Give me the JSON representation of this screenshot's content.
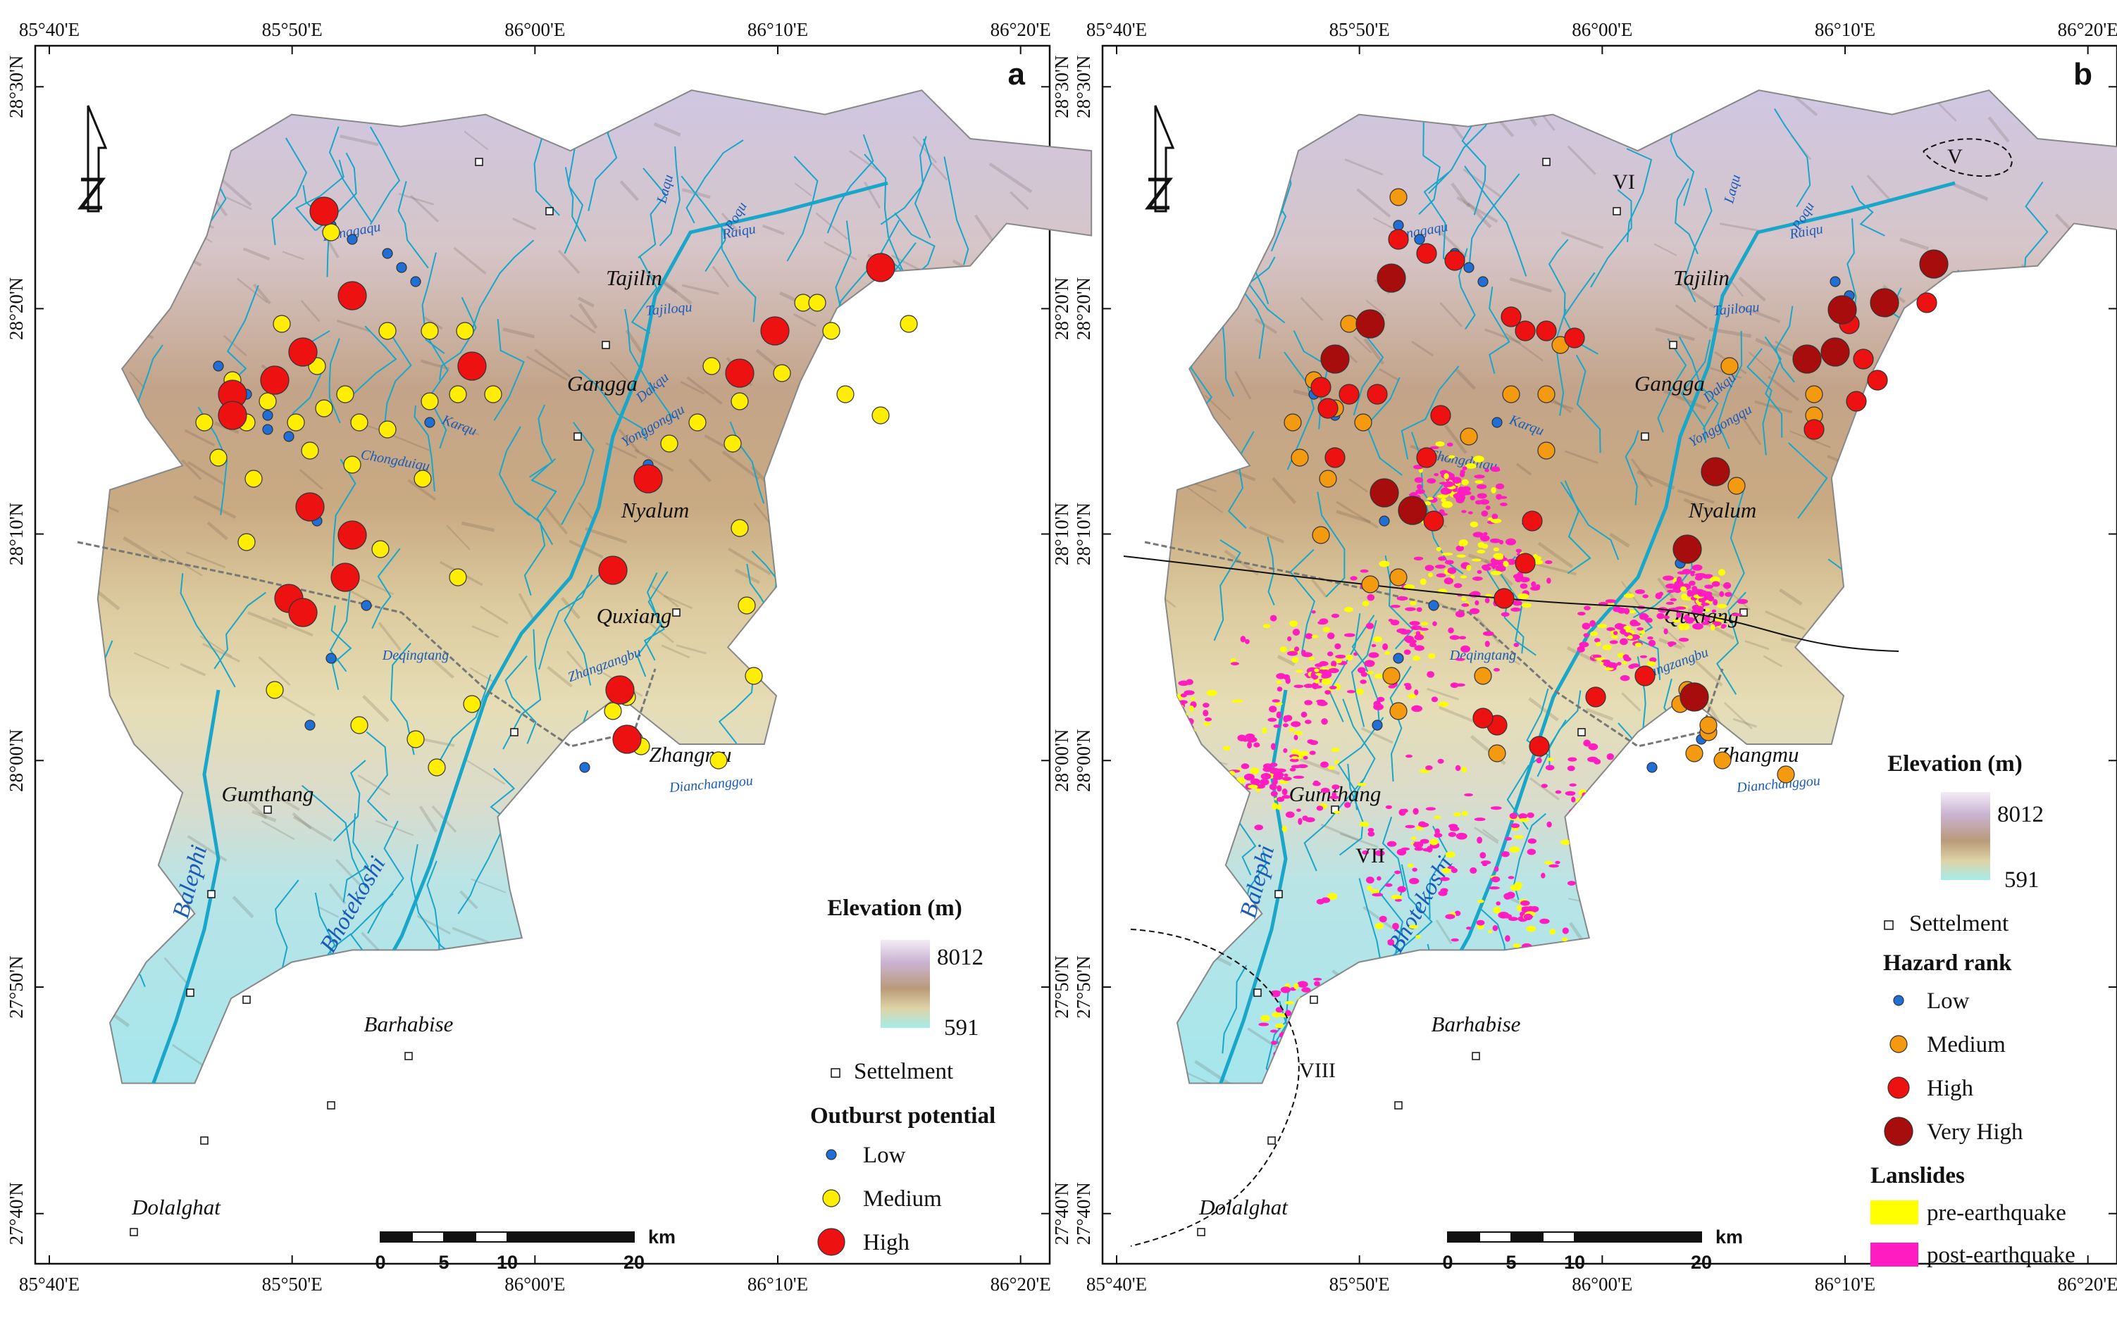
{
  "panels": [
    {
      "id": "a",
      "label": "a",
      "lon_ticks": [
        "85°40'E",
        "85°50'E",
        "86°00'E",
        "86°10'E",
        "86°20'E"
      ],
      "lat_ticks": [
        "28°30'N",
        "28°20'N",
        "28°10'N",
        "28°00'N",
        "27°50'N",
        "27°40'N"
      ],
      "places": [
        "Tajilin",
        "Gangga",
        "Nyalum",
        "Quxiang",
        "Zhangmu",
        "Gumthang",
        "Barhabise",
        "Dolalghat"
      ],
      "rivers": [
        "Poqu",
        "Laqu",
        "Karqu",
        "Raiqu",
        "Tajiloqu",
        "Dakqu",
        "Yonggongqu",
        "Kanggaqu",
        "Chongduiqu",
        "Deqingtang",
        "Zhangzangbu",
        "Dianchanggou"
      ],
      "big_rivers": [
        "Balephi",
        "Bhotekoshi"
      ],
      "legend": {
        "elevation_title": "Elevation (m)",
        "elev_max": "8012",
        "elev_min": "591",
        "settlement_label": "Settelment",
        "outburst_title": "Outburst potential",
        "items": [
          "Low",
          "Medium",
          "High"
        ]
      },
      "scale": {
        "unit": "km",
        "labels": [
          "0",
          "5",
          "10",
          "20"
        ]
      }
    },
    {
      "id": "b",
      "label": "b",
      "lon_ticks": [
        "85°40'E",
        "85°50'E",
        "86°00'E",
        "86°10'E",
        "86°20'E"
      ],
      "lat_ticks": [
        "28°30'N",
        "28°20'N",
        "28°10'N",
        "28°00'N",
        "27°50'N",
        "27°40'N"
      ],
      "places": [
        "Tajilin",
        "Gangga",
        "Nyalum",
        "Quxiang",
        "Zhangmu",
        "Gumthang",
        "Barhabise",
        "Dolalghat"
      ],
      "rivers": [
        "Poqu",
        "Laqu",
        "Karqu",
        "Raiqu",
        "Tajiloqu",
        "Dakqu",
        "Yonggongqu",
        "Kanggaqu",
        "Chongduiqu",
        "Deqingtang",
        "Zhangzangbu",
        "Dianchanggou"
      ],
      "big_rivers": [
        "Balephi",
        "Bhotekoshi"
      ],
      "zones": [
        "V",
        "VI",
        "VII",
        "VIII"
      ],
      "legend": {
        "elevation_title": "Elevation (m)",
        "elev_max": "8012",
        "elev_min": "591",
        "settlement_label": "Settelment",
        "hazard_title": "Hazard rank",
        "items": [
          "Low",
          "Medium",
          "High",
          "Very High"
        ],
        "landslides_title": "Lanslides",
        "landslide_items": [
          "pre-earthquake",
          "post-earthquake"
        ]
      },
      "scale": {
        "unit": "km",
        "labels": [
          "0",
          "5",
          "10",
          "20"
        ]
      }
    }
  ],
  "colors": {
    "low": "#1f6fd6",
    "medium_a": "#ffee00",
    "medium_b": "#f39a10",
    "high": "#ee1111",
    "very_high": "#a80d0d",
    "pre_eq": "#ffff00",
    "post_eq": "#ff1cc0",
    "river": "#19a6c9"
  }
}
